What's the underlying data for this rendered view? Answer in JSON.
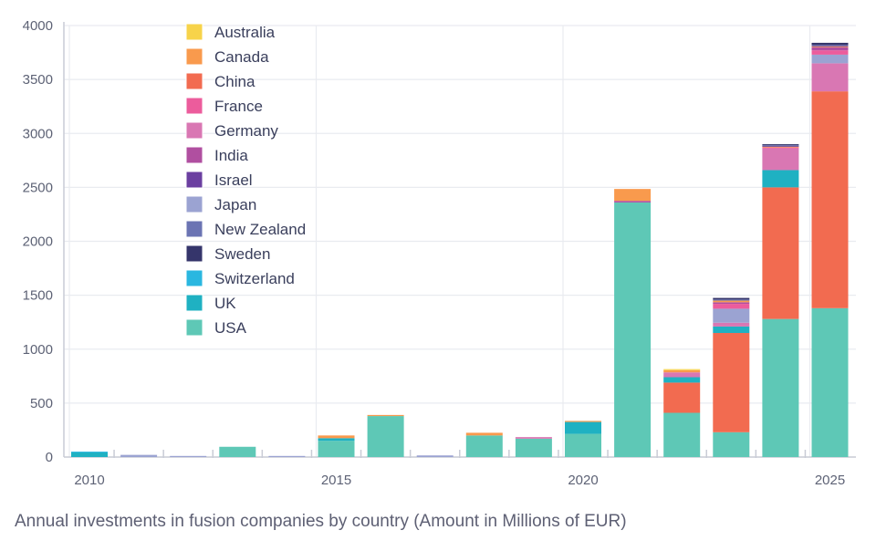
{
  "chart_data": {
    "type": "bar",
    "stacked": true,
    "caption": "Annual investments in fusion companies by country (Amount in Millions of EUR)",
    "x": [
      2010,
      2011,
      2012,
      2013,
      2014,
      2015,
      2016,
      2017,
      2018,
      2019,
      2020,
      2021,
      2022,
      2023,
      2024,
      2025
    ],
    "x_ticks": [
      "2010",
      "2015",
      "2020",
      "2025"
    ],
    "ylim": [
      0,
      4000
    ],
    "y_ticks": [
      "0",
      "500",
      "1000",
      "1500",
      "2000",
      "2500",
      "3000",
      "3500",
      "4000"
    ],
    "grid": true,
    "legend_position": "top-left",
    "series": [
      {
        "name": "USA",
        "color": "#5ec8b6",
        "values": [
          0,
          0,
          0,
          95,
          0,
          150,
          380,
          0,
          200,
          170,
          215,
          2360,
          410,
          230,
          1280,
          1380
        ]
      },
      {
        "name": "China",
        "color": "#f26b50",
        "values": [
          0,
          0,
          0,
          0,
          0,
          0,
          0,
          0,
          0,
          0,
          0,
          0,
          280,
          920,
          1220,
          2010
        ]
      },
      {
        "name": "UK",
        "color": "#1fb1c2",
        "values": [
          45,
          0,
          0,
          0,
          0,
          25,
          0,
          0,
          0,
          0,
          110,
          0,
          50,
          60,
          160,
          0
        ]
      },
      {
        "name": "Germany",
        "color": "#d977b3",
        "values": [
          0,
          0,
          0,
          0,
          0,
          0,
          0,
          0,
          0,
          15,
          0,
          0,
          45,
          35,
          200,
          260
        ]
      },
      {
        "name": "Japan",
        "color": "#9ba3d2",
        "values": [
          0,
          20,
          10,
          0,
          10,
          0,
          0,
          15,
          0,
          0,
          0,
          0,
          0,
          130,
          0,
          80
        ]
      },
      {
        "name": "France",
        "color": "#ec5c9c",
        "values": [
          0,
          0,
          0,
          0,
          0,
          0,
          0,
          0,
          0,
          0,
          0,
          0,
          0,
          45,
          10,
          40
        ]
      },
      {
        "name": "India",
        "color": "#b04fa0",
        "values": [
          0,
          0,
          0,
          0,
          0,
          0,
          0,
          0,
          0,
          0,
          0,
          15,
          0,
          15,
          0,
          30
        ]
      },
      {
        "name": "Canada",
        "color": "#f99a4d",
        "values": [
          0,
          0,
          0,
          0,
          0,
          25,
          10,
          0,
          25,
          0,
          10,
          110,
          20,
          15,
          10,
          10
        ]
      },
      {
        "name": "Australia",
        "color": "#f7d34a",
        "values": [
          0,
          0,
          0,
          0,
          0,
          0,
          0,
          0,
          0,
          0,
          0,
          0,
          10,
          0,
          0,
          0
        ]
      },
      {
        "name": "Israel",
        "color": "#6b3fa0",
        "values": [
          0,
          0,
          0,
          0,
          0,
          0,
          0,
          0,
          0,
          0,
          0,
          0,
          0,
          0,
          5,
          5
        ]
      },
      {
        "name": "New Zealand",
        "color": "#6b74b3",
        "values": [
          0,
          0,
          0,
          0,
          0,
          0,
          0,
          0,
          0,
          0,
          0,
          0,
          0,
          10,
          5,
          5
        ]
      },
      {
        "name": "Sweden",
        "color": "#35356b",
        "values": [
          0,
          0,
          0,
          0,
          0,
          0,
          0,
          0,
          0,
          0,
          0,
          0,
          0,
          15,
          10,
          20
        ]
      },
      {
        "name": "Switzerland",
        "color": "#2ab7e0",
        "values": [
          5,
          0,
          0,
          0,
          0,
          0,
          0,
          0,
          0,
          0,
          0,
          0,
          0,
          0,
          0,
          0
        ]
      }
    ],
    "legend_order": [
      "Australia",
      "Canada",
      "China",
      "France",
      "Germany",
      "India",
      "Israel",
      "Japan",
      "New Zealand",
      "Sweden",
      "Switzerland",
      "UK",
      "USA"
    ]
  }
}
